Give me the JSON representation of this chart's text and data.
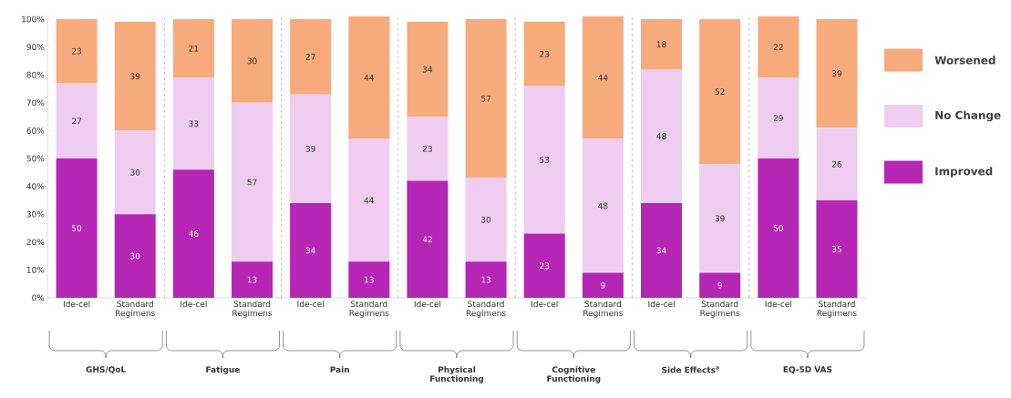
{
  "chart_data": {
    "type": "bar",
    "stacked": true,
    "categories": [
      "Ide-cel",
      "Standard Regimens",
      "Ide-cel",
      "Standard Regimens",
      "Ide-cel",
      "Standard Regimens",
      "Ide-cel",
      "Standard Regimens",
      "Ide-cel",
      "Standard Regimens",
      "Ide-cel",
      "Standard Regimens",
      "Ide-cel",
      "Standard Regimens"
    ],
    "series": [
      {
        "name": "Improved",
        "color": "#b526b5",
        "values": [
          50,
          30,
          46,
          13,
          34,
          13,
          42,
          13,
          23,
          9,
          34,
          9,
          50,
          35
        ]
      },
      {
        "name": "No Change",
        "color": "#efcdf0",
        "values": [
          27,
          30,
          33,
          57,
          39,
          44,
          23,
          30,
          53,
          48,
          48,
          39,
          29,
          26
        ]
      },
      {
        "name": "Worsened",
        "color": "#f7aa7b",
        "values": [
          23,
          39,
          21,
          30,
          27,
          44,
          34,
          57,
          23,
          44,
          18,
          52,
          22,
          39
        ]
      }
    ],
    "data_labels": true,
    "ylim": [
      0,
      101
    ],
    "yticks": [
      {
        "value": 0,
        "label": "0%"
      },
      {
        "value": 10,
        "label": "10%"
      },
      {
        "value": 20,
        "label": "20%"
      },
      {
        "value": 30,
        "label": "30%"
      },
      {
        "value": 40,
        "label": "40%"
      },
      {
        "value": 50,
        "label": "50%"
      },
      {
        "value": 60,
        "label": "60%"
      },
      {
        "value": 70,
        "label": "70%"
      },
      {
        "value": 80,
        "label": "80%"
      },
      {
        "value": 90,
        "label": "90%"
      },
      {
        "value": 100,
        "label": "100%"
      }
    ],
    "annotations": [
      "GHS/QoL",
      "Fatigue",
      "Pain",
      "Physical Functioning",
      "Cognitive Functioning",
      "Side Effects$^{a}$",
      "EQ-5D VAS"
    ],
    "legend": "right",
    "grid": false
  }
}
